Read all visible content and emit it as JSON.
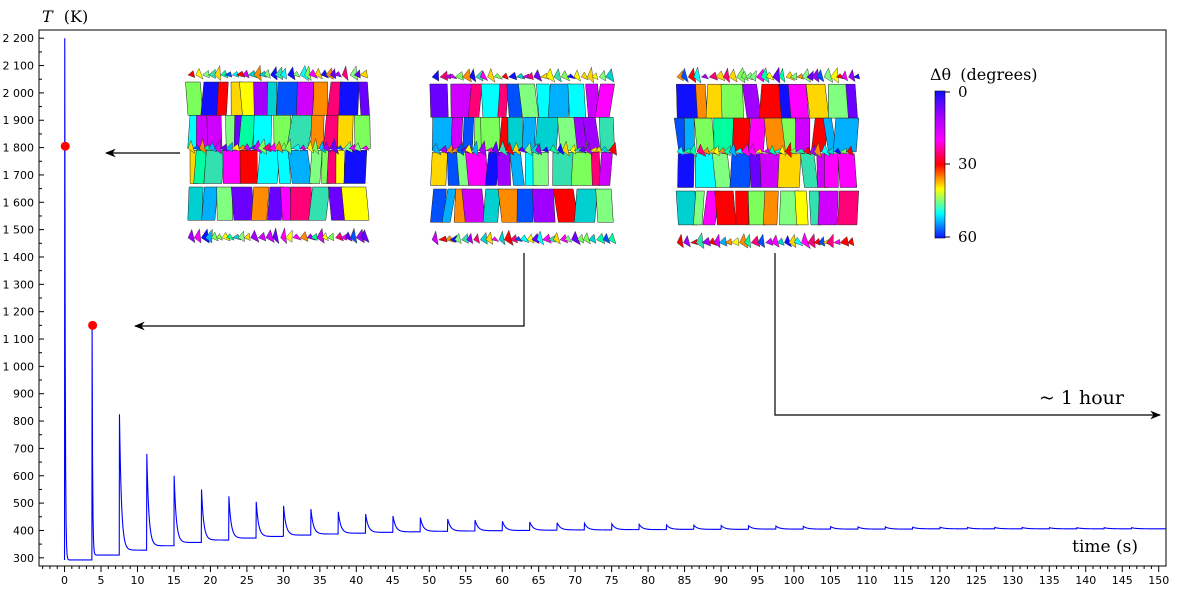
{
  "chart_data": {
    "type": "line",
    "ylabel": "T (K)",
    "ylabel_var": "T",
    "ylabel_unit": "(K)",
    "xlabel": "time (s)",
    "xlim": [
      -3.5,
      151
    ],
    "ylim": [
      270,
      2230
    ],
    "x_ticks": [
      0,
      5,
      10,
      15,
      20,
      25,
      30,
      35,
      40,
      45,
      50,
      55,
      60,
      65,
      70,
      75,
      80,
      85,
      90,
      95,
      100,
      105,
      110,
      115,
      120,
      125,
      130,
      135,
      140,
      145,
      150
    ],
    "y_ticks": [
      300,
      400,
      500,
      600,
      700,
      800,
      900,
      1000,
      1100,
      1200,
      1300,
      1400,
      1500,
      1600,
      1700,
      1800,
      1900,
      2000,
      2100,
      2200
    ],
    "y_tick_labels": [
      "300",
      "400",
      "500",
      "600",
      "700",
      "800",
      "900",
      "1 000",
      "1 100",
      "1 200",
      "1 300",
      "1 400",
      "1 500",
      "1 600",
      "1 700",
      "1 800",
      "1 900",
      "2 000",
      "2 100",
      "2 200"
    ],
    "grid": false,
    "series": [
      {
        "color": "#0000ff",
        "pulse_period": 3.75,
        "pulse_times": [
          0,
          3.75,
          7.5,
          11.25,
          15,
          18.75,
          22.5,
          26.25,
          30,
          33.75,
          37.5,
          41.25,
          45,
          48.75,
          52.5,
          56.25,
          60,
          63.75,
          67.5,
          71.25,
          75,
          78.75,
          82.5,
          86.25,
          90,
          93.75,
          97.5,
          101.25,
          105,
          108.75,
          112.5,
          116.25,
          120,
          123.75,
          127.5,
          131.25,
          135,
          138.75,
          142.5,
          146.25
        ],
        "peaks": [
          2200,
          1150,
          825,
          680,
          600,
          550,
          525,
          505,
          490,
          478,
          468,
          460,
          453,
          447,
          442,
          438,
          434,
          431,
          428,
          426,
          424,
          422,
          420,
          419,
          418,
          417,
          416,
          415,
          414,
          413,
          413,
          412,
          412,
          411,
          411,
          411,
          410,
          410,
          410,
          410
        ],
        "troughs": [
          292,
          310,
          328,
          344,
          356,
          365,
          372,
          378,
          383,
          387,
          390,
          393,
          395,
          397,
          398,
          399,
          400,
          401,
          402,
          402,
          403,
          403,
          404,
          404,
          404,
          405,
          405,
          405,
          405,
          405,
          405,
          406,
          406,
          406,
          406,
          406,
          406,
          406,
          406,
          406
        ]
      }
    ],
    "markers": [
      {
        "x": 0.1,
        "y": 1805,
        "color": "#ff0000"
      },
      {
        "x": 3.85,
        "y": 1150,
        "color": "#ff0000"
      }
    ],
    "annotations": {
      "hour_label": "~ 1 hour"
    },
    "colorbar": {
      "label_symbol": "Δθ",
      "label_unit": "(degrees)",
      "ticks": [
        "0",
        "30",
        "60"
      ],
      "colors": [
        "#1010ff",
        "#a000ff",
        "#ff00ff",
        "#ff0000",
        "#ffff00",
        "#00ffff",
        "#1010ff"
      ]
    },
    "insets": [
      {
        "name": "microstructure-1"
      },
      {
        "name": "microstructure-2"
      },
      {
        "name": "microstructure-3"
      }
    ],
    "inset_palette": [
      "#ff0000",
      "#ff8c00",
      "#ffd700",
      "#ffff00",
      "#7cff5a",
      "#00ff9f",
      "#33e0b0",
      "#00ffff",
      "#00b0ff",
      "#0050ff",
      "#1010ff",
      "#6a00ff",
      "#a000ff",
      "#d000ff",
      "#ff00ff",
      "#ff0077",
      "#80ff80",
      "#00d0d0"
    ]
  }
}
